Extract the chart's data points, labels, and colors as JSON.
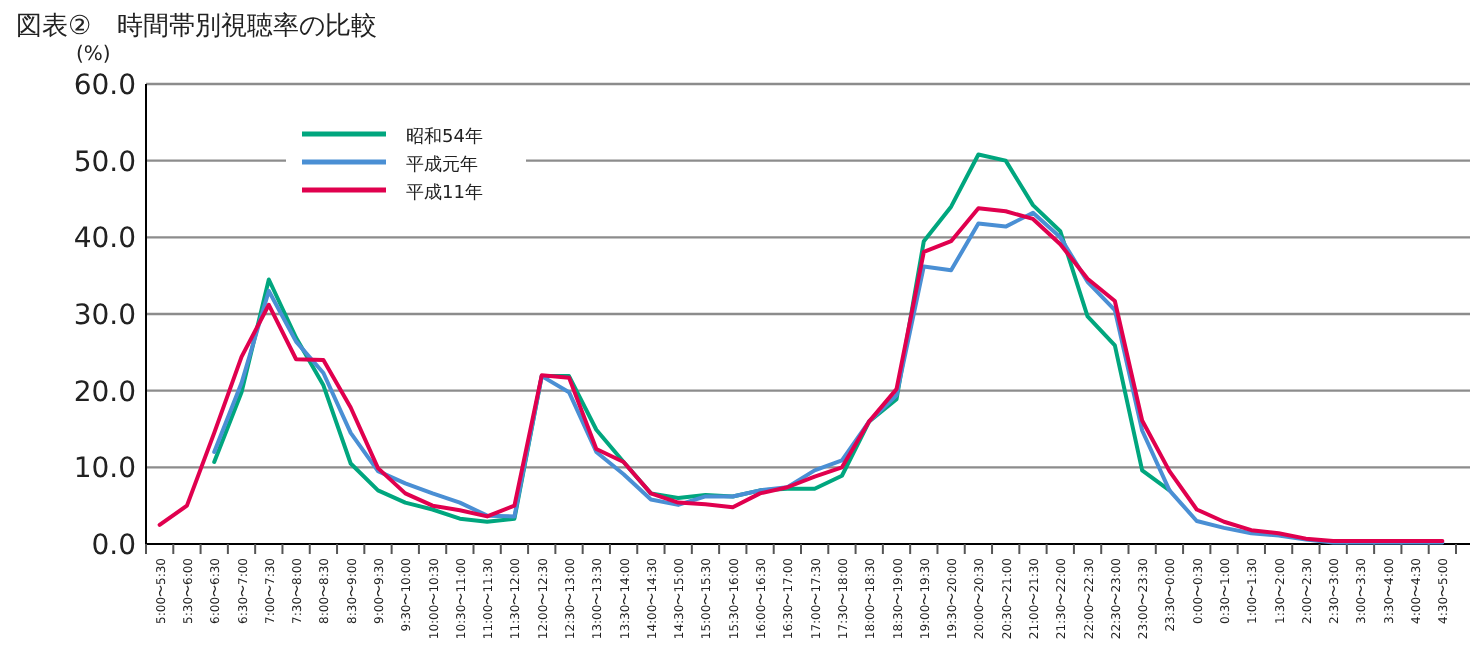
{
  "chart_data": {
    "type": "line",
    "title": "図表②　時間帯別視聴率の比較",
    "ylabel": "(%)",
    "categories": [
      "5:00〜5:30",
      "5:30〜6:00",
      "6:00〜6:30",
      "6:30〜7:00",
      "7:00〜7:30",
      "7:30〜8:00",
      "8:00〜8:30",
      "8:30〜9:00",
      "9:00〜9:30",
      "9:30〜10:00",
      "10:00〜10:30",
      "10:30〜11:00",
      "11:00〜11:30",
      "11:30〜12:00",
      "12:00〜12:30",
      "12:30〜13:00",
      "13:00〜13:30",
      "13:30〜14:00",
      "14:00〜14:30",
      "14:30〜15:00",
      "15:00〜15:30",
      "15:30〜16:00",
      "16:00〜16:30",
      "16:30〜17:00",
      "17:00〜17:30",
      "17:30〜18:00",
      "18:00〜18:30",
      "18:30〜19:00",
      "19:00〜19:30",
      "19:30〜20:00",
      "20:00〜20:30",
      "20:30〜21:00",
      "21:00〜21:30",
      "21:30〜22:00",
      "22:00〜22:30",
      "22:30〜23:00",
      "23:00〜23:30",
      "23:30〜0:00",
      "0:00〜0:30",
      "0:30〜1:00",
      "1:00〜1:30",
      "1:30〜2:00",
      "2:00〜2:30",
      "2:30〜3:00",
      "3:00〜3:30",
      "3:30〜4:00",
      "4:00〜4:30",
      "4:30〜5:00"
    ],
    "series": [
      {
        "name": "昭和54年",
        "color": "#00a67e",
        "values": [
          null,
          null,
          10.7,
          19.8,
          34.5,
          26.9,
          20.7,
          10.5,
          7,
          5.4,
          4.5,
          3.3,
          2.9,
          3.3,
          21.9,
          21.9,
          14.9,
          10.7,
          6.6,
          6,
          6.4,
          6.2,
          7,
          7.2,
          7.2,
          8.9,
          16,
          18.9,
          39.5,
          44,
          50.8,
          50,
          44.2,
          40.8,
          29.7,
          25.9,
          9.6,
          7,
          null,
          null,
          null,
          null,
          null,
          null,
          null,
          null,
          null,
          null
        ]
      },
      {
        "name": "平成元年",
        "color": "#4a8fd4",
        "values": [
          null,
          null,
          12,
          21,
          33,
          26.4,
          22.3,
          14.5,
          9.5,
          7.9,
          6.6,
          5.4,
          3.7,
          3.6,
          21.9,
          19.8,
          12,
          9.1,
          5.8,
          5.1,
          6.2,
          6.2,
          7,
          7.4,
          9.6,
          10.9,
          16,
          19.4,
          36.2,
          35.7,
          41.8,
          41.4,
          43.2,
          40,
          34.2,
          30.5,
          14.8,
          7,
          3,
          2.1,
          1.4,
          1.1,
          0.6,
          0.2,
          0.2,
          0.2,
          0.2,
          0.2
        ]
      },
      {
        "name": "平成11年",
        "color": "#e0004e",
        "values": [
          2.5,
          5,
          14.5,
          24.4,
          31.2,
          24.1,
          24,
          17.8,
          9.9,
          6.6,
          5,
          4.4,
          3.6,
          5,
          22,
          21.7,
          12.4,
          10.7,
          6.6,
          5.4,
          5.2,
          4.8,
          6.6,
          7.4,
          8.8,
          10,
          16,
          20.2,
          38.1,
          39.5,
          43.8,
          43.4,
          42.4,
          39.1,
          34.6,
          31.7,
          16.1,
          9.5,
          4.5,
          2.9,
          1.8,
          1.4,
          0.7,
          0.4,
          0.4,
          0.4,
          0.4,
          0.4
        ]
      }
    ],
    "ylim": [
      0,
      60
    ],
    "yticks": [
      {
        "value": 0,
        "label": "0.0"
      },
      {
        "value": 10,
        "label": "10.0"
      },
      {
        "value": 20,
        "label": "20.0"
      },
      {
        "value": 30,
        "label": "30.0"
      },
      {
        "value": 40,
        "label": "40.0"
      },
      {
        "value": 50,
        "label": "50.0"
      },
      {
        "value": 60,
        "label": "60.0"
      }
    ],
    "grid": "y",
    "legend": "top left"
  }
}
